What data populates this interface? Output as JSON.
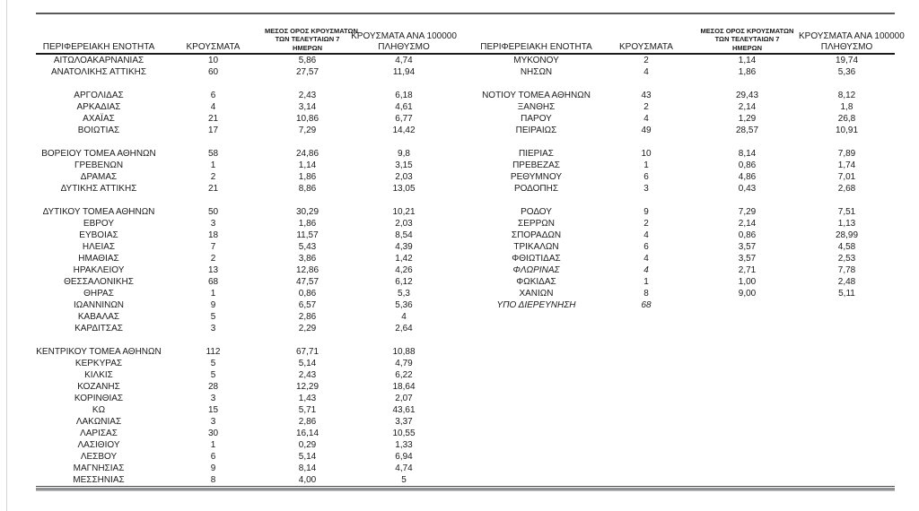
{
  "page": {
    "background": "#ffffff",
    "edge_line_color": "#d4d4d4",
    "text_color": "#1a1a1a",
    "rules": {
      "top_color": "#58595b",
      "header_color": "#1a1a1a",
      "bottom_thin_color": "#4a4a4a",
      "bottom_thick_color": "#8f9193"
    }
  },
  "table": {
    "columns": {
      "region": "ΠΕΡΙΦΕΡΕΙΑΚΗ ΕΝΟΤΗΤΑ",
      "cases": "ΚΡΟΥΣΜΑΤΑ",
      "avg7_lines": [
        "ΜΕΣΟΣ ΟΡΟΣ ΚΡΟΥΣΜΑΤΩΝ",
        "ΤΩΝ ΤΕΛΕΥΤΑΙΩΝ 7",
        "ΗΜΕΡΩΝ"
      ],
      "per100k_lines": [
        "ΚΡΟΥΣΜΑΤΑ ΑΝΑ 100000",
        "ΠΛΗΘΥΣΜΟ"
      ]
    },
    "left_rows": [
      [
        "ΑΙΤΩΛΟΑΚΑΡΝΑΝΙΑΣ",
        "10",
        "5,86",
        "4,74"
      ],
      [
        "ΑΝΑΤΟΛΙΚΗΣ ΑΤΤΙΚΗΣ",
        "60",
        "27,57",
        "11,94"
      ],
      [],
      [
        "ΑΡΓΟΛΙΔΑΣ",
        "6",
        "2,43",
        "6,18"
      ],
      [
        "ΑΡΚΑΔΙΑΣ",
        "4",
        "3,14",
        "4,61"
      ],
      [
        "ΑΧΑΪΑΣ",
        "21",
        "10,86",
        "6,77"
      ],
      [
        "ΒΟΙΩΤΙΑΣ",
        "17",
        "7,29",
        "14,42"
      ],
      [],
      [
        "ΒΟΡΕΙΟΥ ΤΟΜΕΑ ΑΘΗΝΩΝ",
        "58",
        "24,86",
        "9,8"
      ],
      [
        "ΓΡΕΒΕΝΩΝ",
        "1",
        "1,14",
        "3,15"
      ],
      [
        "ΔΡΑΜΑΣ",
        "2",
        "1,86",
        "2,03"
      ],
      [
        "ΔΥΤΙΚΗΣ ΑΤΤΙΚΗΣ",
        "21",
        "8,86",
        "13,05"
      ],
      [],
      [
        "ΔΥΤΙΚΟΥ ΤΟΜΕΑ ΑΘΗΝΩΝ",
        "50",
        "30,29",
        "10,21"
      ],
      [
        "ΕΒΡΟΥ",
        "3",
        "1,86",
        "2,03"
      ],
      [
        "ΕΥΒΟΙΑΣ",
        "18",
        "11,57",
        "8,54"
      ],
      [
        "ΗΛΕΙΑΣ",
        "7",
        "5,43",
        "4,39"
      ],
      [
        "ΗΜΑΘΙΑΣ",
        "2",
        "3,86",
        "1,42"
      ],
      [
        "ΗΡΑΚΛΕΙΟΥ",
        "13",
        "12,86",
        "4,26"
      ],
      [
        "ΘΕΣΣΑΛΟΝΙΚΗΣ",
        "68",
        "47,57",
        "6,12"
      ],
      [
        "ΘΗΡΑΣ",
        "1",
        "0,86",
        "5,3"
      ],
      [
        "ΙΩΑΝΝΙΝΩΝ",
        "9",
        "6,57",
        "5,36"
      ],
      [
        "ΚΑΒΑΛΑΣ",
        "5",
        "2,86",
        "4"
      ],
      [
        "ΚΑΡΔΙΤΣΑΣ",
        "3",
        "2,29",
        "2,64"
      ],
      [],
      [
        "ΚΕΝΤΡΙΚΟΥ ΤΟΜΕΑ ΑΘΗΝΩΝ",
        "112",
        "67,71",
        "10,88"
      ],
      [
        "ΚΕΡΚΥΡΑΣ",
        "5",
        "5,14",
        "4,79"
      ],
      [
        "ΚΙΛΚΙΣ",
        "5",
        "2,43",
        "6,22"
      ],
      [
        "ΚΟΖΑΝΗΣ",
        "28",
        "12,29",
        "18,64"
      ],
      [
        "ΚΟΡΙΝΘΙΑΣ",
        "3",
        "1,43",
        "2,07"
      ],
      [
        "ΚΩ",
        "15",
        "5,71",
        "43,61"
      ],
      [
        "ΛΑΚΩΝΙΑΣ",
        "3",
        "2,86",
        "3,37"
      ],
      [
        "ΛΑΡΙΣΑΣ",
        "30",
        "16,14",
        "10,55"
      ],
      [
        "ΛΑΣΙΘΙΟΥ",
        "1",
        "0,29",
        "1,33"
      ],
      [
        "ΛΕΣΒΟΥ",
        "6",
        "5,14",
        "6,94"
      ],
      [
        "ΜΑΓΝΗΣΙΑΣ",
        "9",
        "8,14",
        "4,74"
      ],
      [
        "ΜΕΣΣΗΝΙΑΣ",
        "8",
        "4,00",
        "5"
      ]
    ],
    "right_rows": [
      [
        "ΜΥΚΟΝΟΥ",
        "2",
        "1,14",
        "19,74"
      ],
      [
        "ΝΗΣΩΝ",
        "4",
        "1,86",
        "5,36"
      ],
      [],
      [
        "ΝΟΤΙΟΥ ΤΟΜΕΑ ΑΘΗΝΩΝ",
        "43",
        "29,43",
        "8,12"
      ],
      [
        "ΞΑΝΘΗΣ",
        "2",
        "2,14",
        "1,8"
      ],
      [
        "ΠΑΡΟΥ",
        "4",
        "1,29",
        "26,8"
      ],
      [
        "ΠΕΙΡΑΙΩΣ",
        "49",
        "28,57",
        "10,91"
      ],
      [],
      [
        "ΠΙΕΡΙΑΣ",
        "10",
        "8,14",
        "7,89"
      ],
      [
        "ΠΡΕΒΕΖΑΣ",
        "1",
        "0,86",
        "1,74"
      ],
      [
        "ΡΕΘΥΜΝΟΥ",
        "6",
        "4,86",
        "7,01"
      ],
      [
        "ΡΟΔΟΠΗΣ",
        "3",
        "0,43",
        "2,68"
      ],
      [],
      [
        "ΡΟΔΟΥ",
        "9",
        "7,29",
        "7,51"
      ],
      [
        "ΣΕΡΡΩΝ",
        "2",
        "2,14",
        "1,13"
      ],
      [
        "ΣΠΟΡΑΔΩΝ",
        "4",
        "0,86",
        "28,99"
      ],
      [
        "ΤΡΙΚΑΛΩΝ",
        "6",
        "3,57",
        "4,58"
      ],
      [
        "ΦΘΙΩΤΙΔΑΣ",
        "4",
        "3,57",
        "2,53"
      ],
      [
        "ΦΛΩΡΙΝΑΣ",
        "4",
        "2,71",
        "7,78",
        "i"
      ],
      [
        "ΦΩΚΙΔΑΣ",
        "1",
        "1,00",
        "2,48"
      ],
      [
        "ΧΑΝΙΩΝ",
        "8",
        "9,00",
        "5,11"
      ],
      [
        "ΥΠΟ ΔΙΕΡΕΥΝΗΣΗ",
        "68",
        "",
        "",
        "i"
      ]
    ]
  }
}
